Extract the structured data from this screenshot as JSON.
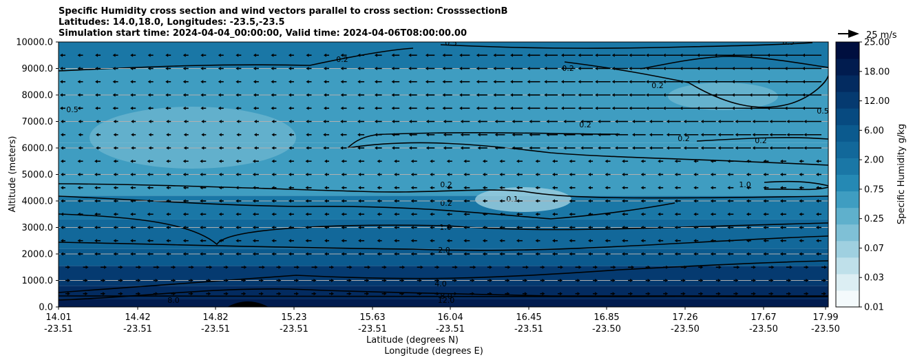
{
  "chart_data": {
    "type": "heatmap",
    "title_lines": [
      "Specific Humidity cross section and wind vectors parallel to cross section: CrosssectionB",
      "Latitudes: 14.0,18.0, Longitudes: -23.5,-23.5",
      "Simulation start time: 2024-04-04_00:00:00, Valid time: 2024-04-06T08:00:00.00"
    ],
    "ylabel": "Altitude (meters)",
    "xlabel_lines": [
      "Latitude (degrees N)",
      "Longitude (degrees E)"
    ],
    "ylim": [
      0,
      10000
    ],
    "yticks": [
      "0.0",
      "1000.0",
      "2000.0",
      "3000.0",
      "4000.0",
      "5000.0",
      "6000.0",
      "7000.0",
      "8000.0",
      "9000.0",
      "10000.0"
    ],
    "xticks": [
      {
        "lat": "14.01",
        "lon": "-23.51"
      },
      {
        "lat": "14.42",
        "lon": "-23.51"
      },
      {
        "lat": "14.82",
        "lon": "-23.51"
      },
      {
        "lat": "15.23",
        "lon": "-23.51"
      },
      {
        "lat": "15.63",
        "lon": "-23.51"
      },
      {
        "lat": "16.04",
        "lon": "-23.51"
      },
      {
        "lat": "16.45",
        "lon": "-23.51"
      },
      {
        "lat": "16.85",
        "lon": "-23.50"
      },
      {
        "lat": "17.26",
        "lon": "-23.50"
      },
      {
        "lat": "17.67",
        "lon": "-23.50"
      },
      {
        "lat": "17.99",
        "lon": "-23.50"
      }
    ],
    "grid": "horizontal",
    "colorbar": {
      "label": "Specific Humidity g/kg",
      "ticks": [
        "0.01",
        "0.03",
        "0.07",
        "0.25",
        "0.75",
        "2.00",
        "6.00",
        "12.00",
        "18.00",
        "25.00"
      ]
    },
    "quiver_key": "25 m/s",
    "contour_labels": [
      "0.1",
      "0.2",
      "0.5",
      "1.0",
      "2.0",
      "4.0",
      "8.0",
      "12.0"
    ],
    "humidity_layers": [
      {
        "top_m": 300,
        "value": 12.0
      },
      {
        "top_m": 800,
        "value": 8.0
      },
      {
        "top_m": 1550,
        "value": 4.0
      },
      {
        "top_m": 2200,
        "value": 2.0
      },
      {
        "top_m": 3300,
        "value": 1.0
      },
      {
        "top_m": 4200,
        "value": 0.5
      },
      {
        "top_m": 6200,
        "value": 0.2
      },
      {
        "top_m": 9000,
        "value": 0.2
      },
      {
        "top_m": 10000,
        "value": 0.5
      }
    ],
    "wind_rows_m": [
      9500,
      9000,
      8500,
      8000,
      7500,
      7000,
      6500,
      6000,
      5500,
      5000,
      4500,
      4000,
      3500,
      3000,
      2500,
      2000,
      1500,
      1000,
      500
    ],
    "wind_cols": 44
  }
}
